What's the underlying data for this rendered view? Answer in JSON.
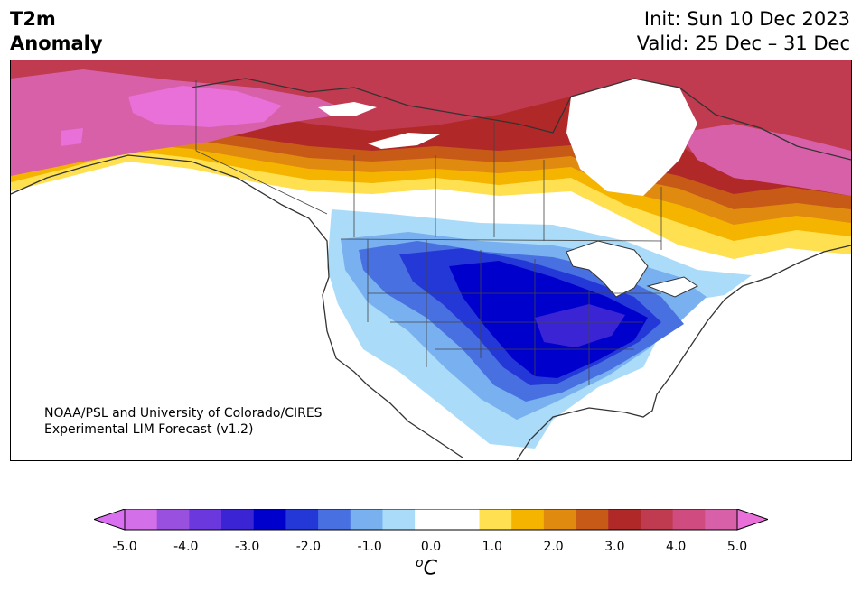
{
  "header": {
    "title_line1": "T2m",
    "title_line2": "Anomaly",
    "init": "Init: Sun 10 Dec 2023",
    "valid": "Valid: 25 Dec – 31 Dec"
  },
  "credit": {
    "line1": "NOAA/PSL and University of Colorado/CIRES",
    "line2": "Experimental LIM Forecast (v1.2)"
  },
  "colorbar": {
    "unit_base": "C",
    "unit_sup": "o",
    "ticks": [
      "-5.0",
      "-4.0",
      "-3.0",
      "-2.0",
      "-1.0",
      "0.0",
      "1.0",
      "2.0",
      "3.0",
      "4.0",
      "5.0"
    ],
    "colors": [
      "#d36fe8",
      "#9a50de",
      "#6a38dc",
      "#3a24d4",
      "#0000cc",
      "#2438d8",
      "#4870e0",
      "#78b0f0",
      "#aadcfa",
      "#ffffff",
      "#ffffff",
      "#ffe050",
      "#f4b400",
      "#e08a10",
      "#c85a18",
      "#b02828",
      "#c03a50",
      "#d04c80",
      "#d860a8"
    ],
    "under_color": "#d870f0",
    "over_color": "#e870d8"
  },
  "map": {
    "colors": {
      "magenta": "#d860a8",
      "pink_bright": "#e870d8",
      "rose": "#c03a50",
      "red": "#b02828",
      "brick": "#c85a18",
      "orange": "#e08a10",
      "gold": "#f4b400",
      "yellow": "#ffe050",
      "pale_blue": "#aadcfa",
      "light_blue": "#78b0f0",
      "mid_blue": "#4870e0",
      "blue": "#2438d8",
      "deep_blue": "#0000cc",
      "indigo": "#3a24d4",
      "coast": "#333333"
    }
  }
}
